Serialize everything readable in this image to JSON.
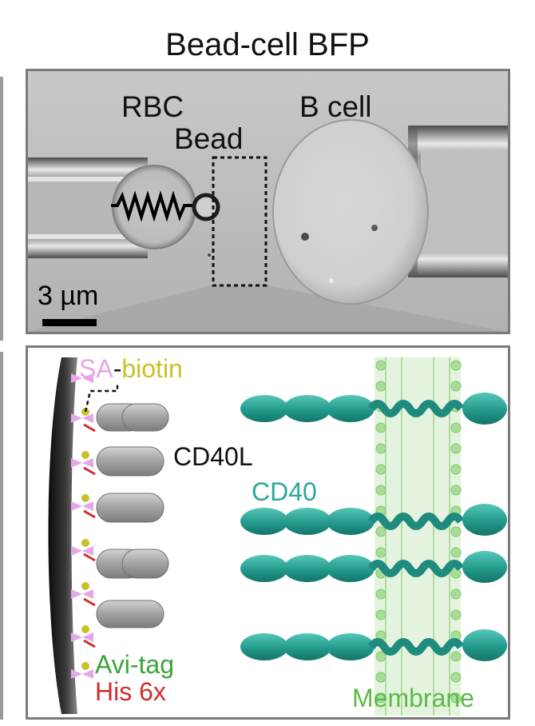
{
  "title": "Bead-cell BFP",
  "micrograph": {
    "rbc_label": "RBC",
    "bead_label": "Bead",
    "bcell_label": "B cell",
    "scale_bar_label": "3 µm"
  },
  "schematic": {
    "sa_label": "SA",
    "dash_label": "-",
    "biotin_label": "biotin",
    "cd40l_label": "CD40L",
    "cd40_label": "CD40",
    "avitag_label": "Avi-tag",
    "his_label": "His 6x",
    "membrane_label": "Membrane"
  },
  "colors": {
    "sa": "#e6a7e8",
    "biotin": "#c9c12a",
    "cd40": "#2aa89a",
    "avitag": "#3aa33a",
    "his": "#d22c2c",
    "membrane": "#5cb94a",
    "cd40l": "#9a9a9a"
  }
}
